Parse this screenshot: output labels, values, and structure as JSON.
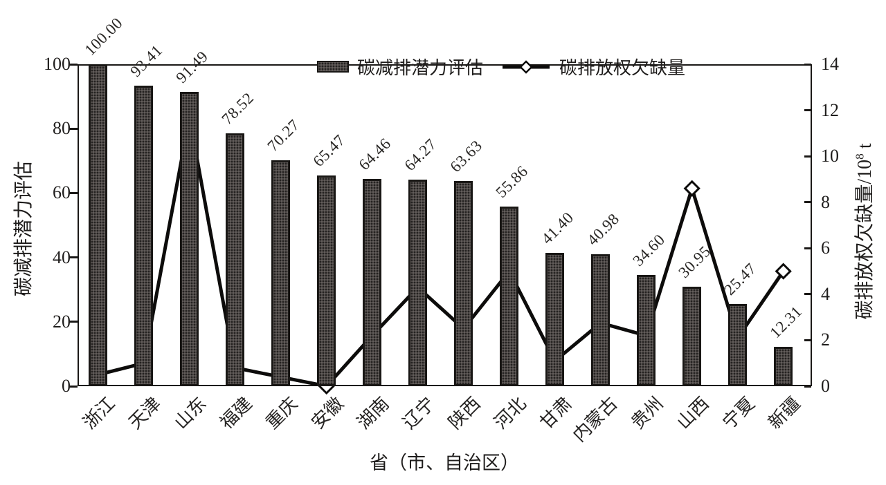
{
  "figure": {
    "legend": [
      {
        "label": "碳减排潜力评估",
        "type": "bar"
      },
      {
        "label": "碳排放权欠缺量",
        "type": "line"
      }
    ],
    "left_axis": {
      "title": "碳减排潜力评估",
      "ticks": [
        0,
        20,
        40,
        60,
        80,
        100
      ]
    },
    "right_axis": {
      "title_prefix": "碳排放权欠缺量/10",
      "title_sup": "8",
      "title_suffix": " t",
      "ticks": [
        0,
        2,
        4,
        6,
        8,
        10,
        12,
        14
      ]
    },
    "x_axis": {
      "title": "省（市、自治区）"
    }
  },
  "chart_data": {
    "type": "bar",
    "subtype": "bar-line-combo-dual-axis",
    "categories": [
      "浙江",
      "天津",
      "山东",
      "福建",
      "重庆",
      "安徽",
      "湖南",
      "辽宁",
      "陕西",
      "河北",
      "甘肃",
      "内蒙古",
      "贵州",
      "山西",
      "宁夏",
      "新疆"
    ],
    "series": [
      {
        "name": "碳减排潜力评估",
        "type": "bar",
        "axis": "left",
        "values": [
          100.0,
          93.41,
          91.49,
          78.52,
          70.27,
          65.47,
          64.46,
          64.27,
          63.63,
          55.86,
          41.4,
          40.98,
          34.6,
          30.95,
          25.47,
          12.31
        ]
      },
      {
        "name": "碳排放权欠缺量",
        "type": "line",
        "axis": "right",
        "values": [
          0.5,
          1.0,
          11.7,
          0.8,
          0.4,
          0.0,
          2.2,
          4.3,
          2.5,
          5.0,
          1.1,
          2.75,
          2.2,
          8.6,
          2.1,
          5.0
        ]
      }
    ],
    "title": "",
    "xlabel": "省（市、自治区）",
    "ylabel_left": "碳减排潜力评估",
    "ylabel_right": "碳排放权欠缺量/10⁸ t",
    "ylim_left": [
      0,
      100
    ],
    "ylim_right": [
      0,
      14
    ],
    "grid": false,
    "legend_position": "top-center",
    "bar_label_decimals": 2,
    "colors": {
      "bar_fill": "#4d4846",
      "bar_border": "#191715",
      "line": "#0d0c0b",
      "marker_fill": "#ffffff",
      "marker_border": "#0d0c0b",
      "text": "#1f1d1c"
    }
  }
}
